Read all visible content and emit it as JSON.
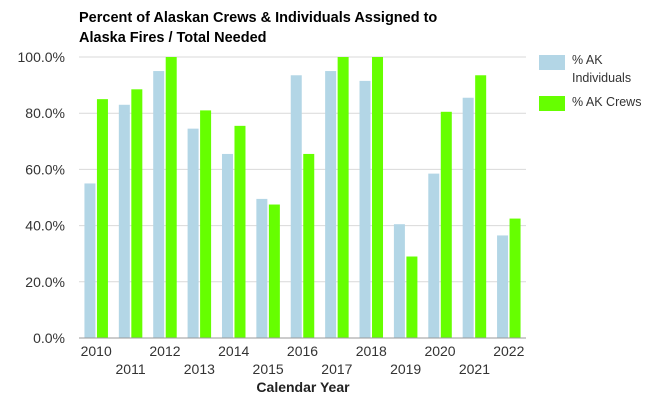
{
  "chart_data": {
    "type": "bar",
    "title_lines": [
      "Percent of Alaskan Crews & Individuals Assigned to",
      "Alaska Fires / Total Needed"
    ],
    "xlabel": "Calendar Year",
    "ylabel": "",
    "categories": [
      "2010",
      "2011",
      "2012",
      "2013",
      "2014",
      "2015",
      "2016",
      "2017",
      "2018",
      "2019",
      "2020",
      "2021",
      "2022"
    ],
    "ylim": [
      0,
      100
    ],
    "y_ticks": [
      "0.0%",
      "20.0%",
      "40.0%",
      "60.0%",
      "80.0%",
      "100.0%"
    ],
    "grid": true,
    "legend_position": "right",
    "series": [
      {
        "name_lines": [
          "% AK",
          "Individuals"
        ],
        "name": "% AK Individuals",
        "color": "#b3d6e6",
        "values": [
          55,
          83,
          95,
          74.5,
          65.5,
          49.5,
          93.5,
          95,
          91.5,
          40.5,
          58.5,
          85.5,
          36.5
        ]
      },
      {
        "name_lines": [
          "% AK Crews"
        ],
        "name": "% AK Crews",
        "color": "#66ff00",
        "values": [
          85,
          88.5,
          100,
          81,
          75.5,
          47.5,
          65.5,
          100,
          100,
          29,
          80.5,
          93.5,
          42.5
        ]
      }
    ]
  }
}
